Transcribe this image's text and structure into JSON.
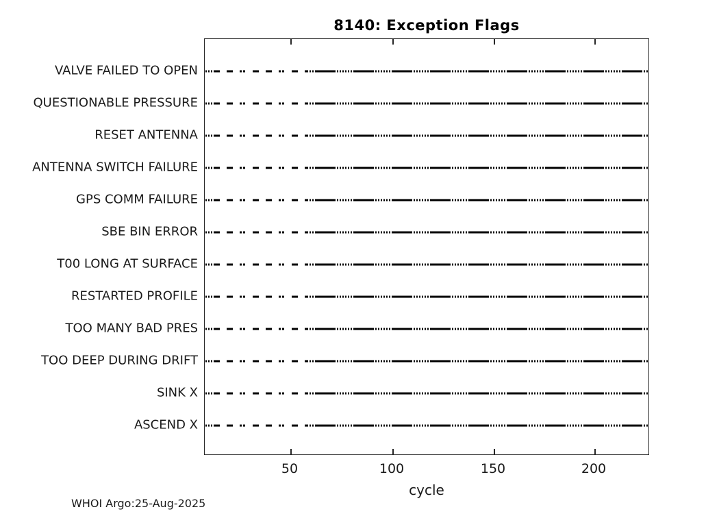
{
  "chart": {
    "title": "8140: Exception Flags",
    "xlabel": "cycle",
    "footer": "WHOI Argo:25-Aug-2025"
  },
  "chart_data": {
    "type": "scatter",
    "title": "8140: Exception Flags",
    "xlabel": "cycle",
    "ylabel": "",
    "categories": [
      "VALVE FAILED TO OPEN",
      "QUESTIONABLE PRESSURE",
      "RESET ANTENNA",
      "ANTENNA SWITCH FAILURE",
      "GPS COMM FAILURE",
      "SBE BIN ERROR",
      "T00 LONG AT SURFACE",
      "RESTARTED PROFILE",
      "TOO MANY BAD PRES",
      "TOO DEEP DURING DRIFT",
      "SINK X",
      "ASCEND X"
    ],
    "x_ticks": [
      50,
      100,
      150,
      200
    ],
    "xlim": [
      1,
      228
    ],
    "grid": false,
    "legend": false,
    "marker": "black horizontal dash",
    "rows_pattern": {
      "description": "All 12 flag rows display an identical horizontal marker trace: sparse dash markers for roughly cycles 1-50 (about every 5-6 cycles), then dense markers at every cycle from about cycle 50 to 228 that visually merge into alternating solid and finely dotted runs.",
      "sparse_cycles": [
        1,
        50
      ],
      "sparse_spacing_cycles": 6,
      "dense_cycles": [
        50,
        228
      ],
      "dense_spacing_cycles": 1
    }
  },
  "colors": {
    "line": "#000000",
    "text": "#1a1a1a",
    "axis": "#262626",
    "background": "#ffffff"
  }
}
